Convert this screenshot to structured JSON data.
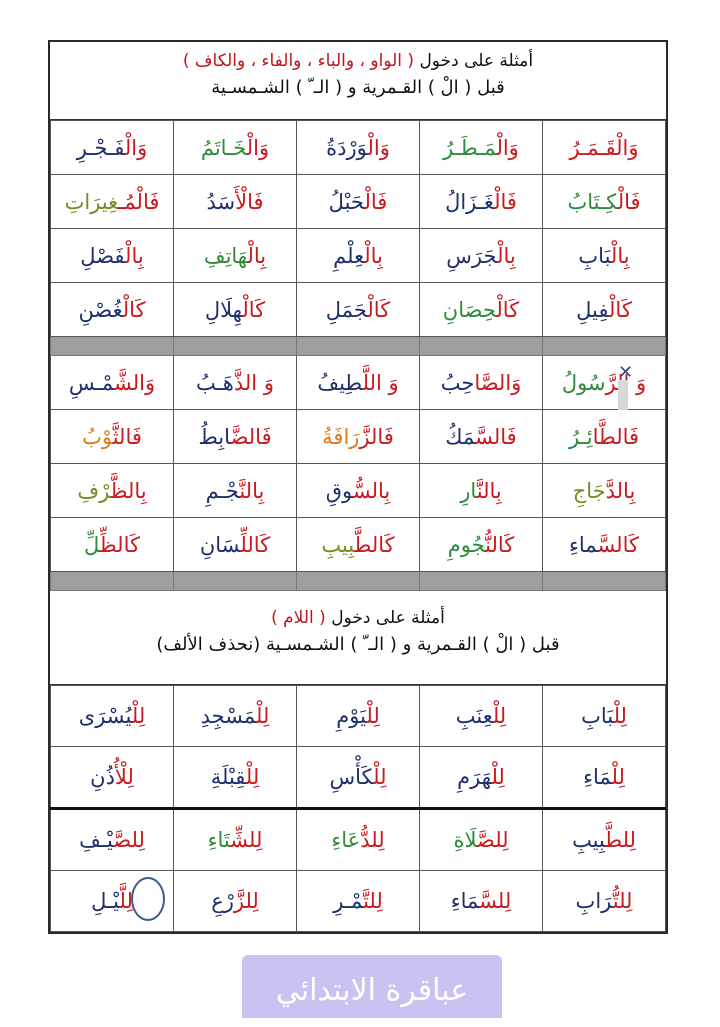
{
  "section1": {
    "title_prefix": "أمثلة على دخول",
    "title_letters": "( الواو ، والباء ، والفاء ، والكاف )",
    "subtitle": "قبل ( الْ ) القـمرية و ( الـ ّ ) الشـمسـية"
  },
  "section2": {
    "title_prefix": "أمثلة على دخول",
    "title_letters": "( اللام )",
    "subtitle": "قبل ( الْ ) القـمرية و ( الـ ّ ) الشـمسـية (نحذف الألف)"
  },
  "colors": {
    "red": "#c91a1f",
    "green": "#2e8b3a",
    "orange": "#e07a16",
    "navy": "#1f2f6b"
  },
  "grid1": [
    [
      [
        {
          "t": "وَالْ",
          "c": "red"
        },
        {
          "t": "قَـمَـرُ",
          "c": "red"
        }
      ],
      [
        {
          "t": "وَالْ",
          "c": "red"
        },
        {
          "t": "مَـطَـرُ",
          "c": "green"
        }
      ],
      [
        {
          "t": "وَالْ",
          "c": "red"
        },
        {
          "t": "وَرْدَةُ",
          "c": "navy"
        }
      ],
      [
        {
          "t": "وَالْ",
          "c": "red"
        },
        {
          "t": "خَـاتَمُ",
          "c": "green"
        }
      ],
      [
        {
          "t": "وَالْ",
          "c": "red"
        },
        {
          "t": "فَـجْـرِ",
          "c": "navy"
        }
      ]
    ],
    [
      [
        {
          "t": "فَالْ",
          "c": "red"
        },
        {
          "t": "كِـتَابُ",
          "c": "green"
        }
      ],
      [
        {
          "t": "فَالْ",
          "c": "red"
        },
        {
          "t": "غَـزَالُ",
          "c": "navy"
        }
      ],
      [
        {
          "t": "فَالْ",
          "c": "red"
        },
        {
          "t": "حَبْلُ",
          "c": "navy"
        }
      ],
      [
        {
          "t": "فَالْأَ",
          "c": "red"
        },
        {
          "t": "سَدُ",
          "c": "navy"
        }
      ],
      [
        {
          "t": "فَالْمُـ",
          "c": "red"
        },
        {
          "t": "غِيرَاتِ",
          "c": "olive"
        }
      ]
    ],
    [
      [
        {
          "t": "بِالْ",
          "c": "red"
        },
        {
          "t": "بَابِ",
          "c": "navy"
        }
      ],
      [
        {
          "t": "بِالْ",
          "c": "red"
        },
        {
          "t": "جَرَسِ",
          "c": "navy"
        }
      ],
      [
        {
          "t": "بِالْ",
          "c": "red"
        },
        {
          "t": "عِلْمِ",
          "c": "navy"
        }
      ],
      [
        {
          "t": "بِالْ",
          "c": "red"
        },
        {
          "t": "هَاتِفِ",
          "c": "green"
        }
      ],
      [
        {
          "t": "بِالْ",
          "c": "red"
        },
        {
          "t": "فَصْلِ",
          "c": "navy"
        }
      ]
    ],
    [
      [
        {
          "t": "كَالْ",
          "c": "red"
        },
        {
          "t": "فِيلِ",
          "c": "navy"
        }
      ],
      [
        {
          "t": "كَالْ",
          "c": "red"
        },
        {
          "t": "حِصَانِ",
          "c": "green"
        }
      ],
      [
        {
          "t": "كَالْ",
          "c": "red"
        },
        {
          "t": "جَمَلِ",
          "c": "navy"
        }
      ],
      [
        {
          "t": "كَالْ",
          "c": "red"
        },
        {
          "t": "هِلَالِ",
          "c": "navy"
        }
      ],
      [
        {
          "t": "كَالْ",
          "c": "red"
        },
        {
          "t": "غُصْنِ",
          "c": "navy"
        }
      ]
    ],
    "sep",
    [
      [
        {
          "t": "وَ الرَّ",
          "c": "red"
        },
        {
          "t": "سُولُ",
          "c": "green"
        }
      ],
      [
        {
          "t": "وَالصَّا",
          "c": "red"
        },
        {
          "t": "حِبُ",
          "c": "navy"
        }
      ],
      [
        {
          "t": "وَ اللَّ",
          "c": "red"
        },
        {
          "t": "طِيفُ",
          "c": "navy"
        }
      ],
      [
        {
          "t": "وَ الذَّ",
          "c": "red"
        },
        {
          "t": "هَـبُ",
          "c": "navy"
        }
      ],
      [
        {
          "t": "وَالشَّ",
          "c": "red"
        },
        {
          "t": "مْـسِ",
          "c": "navy"
        }
      ]
    ],
    [
      [
        {
          "t": "فَالطَّا",
          "c": "red"
        },
        {
          "t": "ئِـرُ",
          "c": "green"
        }
      ],
      [
        {
          "t": "فَالسَّ",
          "c": "red"
        },
        {
          "t": "مَكُ",
          "c": "navy"
        }
      ],
      [
        {
          "t": "فَالزَّ",
          "c": "red"
        },
        {
          "t": "رَافَةُ",
          "c": "orange"
        }
      ],
      [
        {
          "t": "فَالضَّ",
          "c": "red"
        },
        {
          "t": "ابِطُ",
          "c": "navy"
        }
      ],
      [
        {
          "t": "فَالثَّ",
          "c": "red"
        },
        {
          "t": "وْبُ",
          "c": "orange"
        }
      ]
    ],
    [
      [
        {
          "t": "بِالدَّ",
          "c": "red"
        },
        {
          "t": "جَاجِ",
          "c": "olive"
        }
      ],
      [
        {
          "t": "بِالنَّ",
          "c": "red"
        },
        {
          "t": "ارِ",
          "c": "green"
        }
      ],
      [
        {
          "t": "بِالسُّ",
          "c": "red"
        },
        {
          "t": "وقِ",
          "c": "navy"
        }
      ],
      [
        {
          "t": "بِالنَّ",
          "c": "red"
        },
        {
          "t": "جْـمِ",
          "c": "navy"
        }
      ],
      [
        {
          "t": "بِالظَّ",
          "c": "red"
        },
        {
          "t": "رْفِ",
          "c": "olive"
        }
      ]
    ],
    [
      [
        {
          "t": "كَالسَّ",
          "c": "red"
        },
        {
          "t": "ماءِ",
          "c": "navy"
        }
      ],
      [
        {
          "t": "كَالنُّ",
          "c": "red"
        },
        {
          "t": "جُومِ",
          "c": "green"
        }
      ],
      [
        {
          "t": "كَالطَّ",
          "c": "red"
        },
        {
          "t": "بِيبِ",
          "c": "olive"
        }
      ],
      [
        {
          "t": "كَاللِّ",
          "c": "red"
        },
        {
          "t": "سَانِ",
          "c": "navy"
        }
      ],
      [
        {
          "t": "كَالظِّ",
          "c": "red"
        },
        {
          "t": "لِّ",
          "c": "green"
        }
      ]
    ],
    "sep"
  ],
  "grid2": [
    [
      [
        {
          "t": "لِلْ",
          "c": "red"
        },
        {
          "t": "بَابِ",
          "c": "navy"
        }
      ],
      [
        {
          "t": "لِلْ",
          "c": "red"
        },
        {
          "t": "عِنَبِ",
          "c": "navy"
        }
      ],
      [
        {
          "t": "لِلْ",
          "c": "red"
        },
        {
          "t": "يَوْمِ",
          "c": "navy"
        }
      ],
      [
        {
          "t": "لِلْ",
          "c": "red"
        },
        {
          "t": "مَسْجِدِ",
          "c": "navy"
        }
      ],
      [
        {
          "t": "لِلْ",
          "c": "red"
        },
        {
          "t": "يُسْرَى",
          "c": "navy"
        }
      ]
    ],
    [
      [
        {
          "t": "لِلْ",
          "c": "red"
        },
        {
          "t": "مَاءِ",
          "c": "navy"
        }
      ],
      [
        {
          "t": "لِلْ",
          "c": "red"
        },
        {
          "t": "هَرَمِ",
          "c": "navy"
        }
      ],
      [
        {
          "t": "لِلْ",
          "c": "red"
        },
        {
          "t": "كَأْسِ",
          "c": "navy"
        }
      ],
      [
        {
          "t": "لِلْ",
          "c": "red"
        },
        {
          "t": "قِبْلَةِ",
          "c": "navy"
        }
      ],
      [
        {
          "t": "لِلْأُ",
          "c": "red"
        },
        {
          "t": "ذُنِ",
          "c": "navy"
        }
      ]
    ],
    [
      [
        {
          "t": "لِلطَّ",
          "c": "red"
        },
        {
          "t": "بِيبِ",
          "c": "navy"
        }
      ],
      [
        {
          "t": "لِلصَّ",
          "c": "red"
        },
        {
          "t": "لَاةِ",
          "c": "green"
        }
      ],
      [
        {
          "t": "لِلدُّ",
          "c": "red"
        },
        {
          "t": "عَاءِ",
          "c": "green"
        }
      ],
      [
        {
          "t": "لِلشِّ",
          "c": "red"
        },
        {
          "t": "تَاءِ",
          "c": "green"
        }
      ],
      [
        {
          "t": "لِلصَّ",
          "c": "red"
        },
        {
          "t": "يْـفِ",
          "c": "navy"
        }
      ]
    ],
    [
      [
        {
          "t": "لِلتُّ",
          "c": "red"
        },
        {
          "t": "رَابِ",
          "c": "navy"
        }
      ],
      [
        {
          "t": "لِلسَّ",
          "c": "red"
        },
        {
          "t": "مَاءِ",
          "c": "navy"
        }
      ],
      [
        {
          "t": "لِلتَّ",
          "c": "red"
        },
        {
          "t": "مْـرِ",
          "c": "navy"
        }
      ],
      [
        {
          "t": "لِلزَّ",
          "c": "red"
        },
        {
          "t": "رْعِ",
          "c": "navy"
        }
      ],
      [
        {
          "t": "لِلَّ",
          "c": "red"
        },
        {
          "t": "يْـلِ",
          "c": "navy"
        }
      ]
    ]
  ],
  "watermark": "عباقرة الابتدائي",
  "close_icon": "close-icon",
  "circle_annotation": "circle-mark-icon"
}
